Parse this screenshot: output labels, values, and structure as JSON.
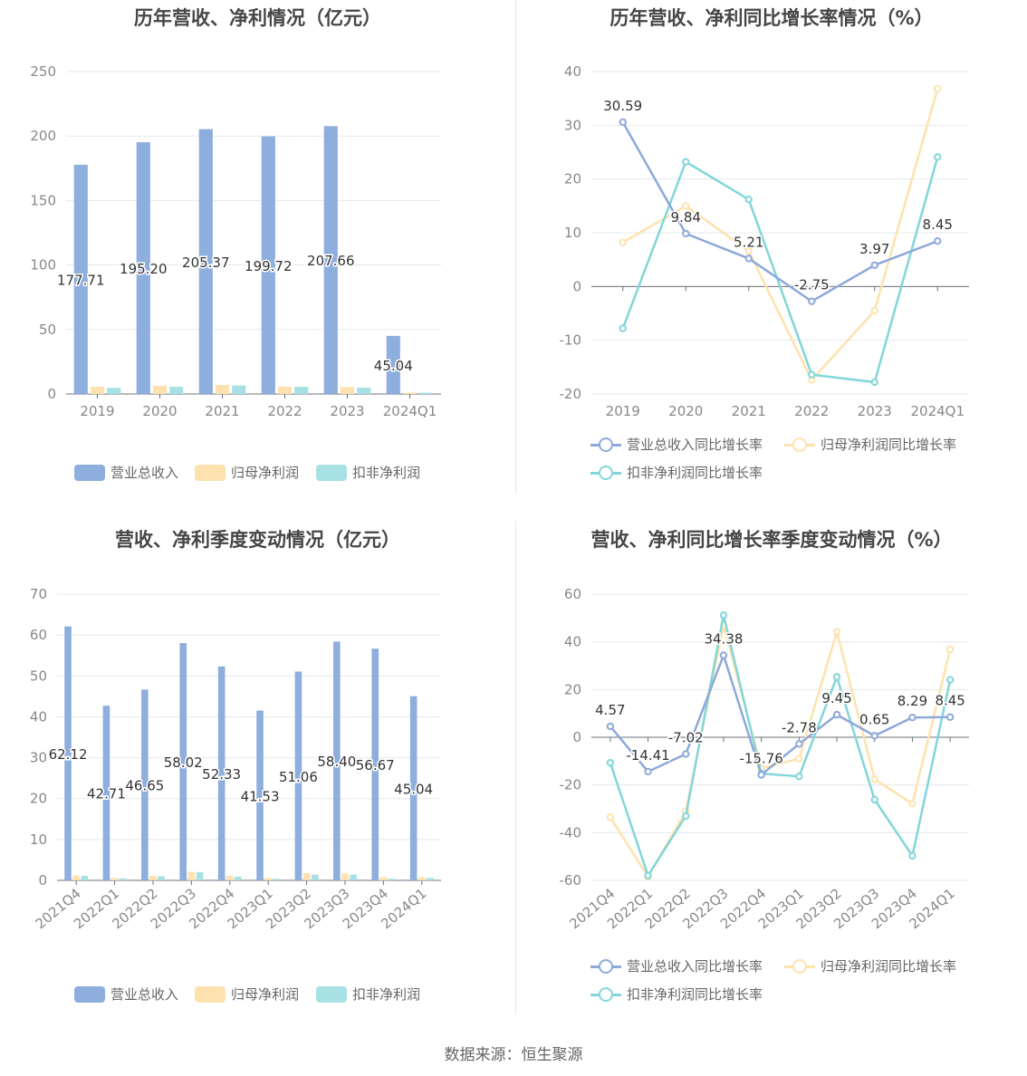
{
  "colors": {
    "revenue": "#8eaedd",
    "net_profit": "#fde2b0",
    "deducted_profit": "#a7e1e4",
    "revenue_line": "#8ea9d9",
    "net_line": "#fde3ad",
    "deducted_line": "#82d6d9",
    "grid": "#e6e8ee",
    "axis": "#6e7079",
    "tick_text": "#888888",
    "label_text": "#333333"
  },
  "legend": {
    "bar": [
      "营业总收入",
      "归母净利润",
      "扣非净利润"
    ],
    "line": [
      "营业总收入同比增长率",
      "归母净利润同比增长率",
      "扣非净利润同比增长率"
    ]
  },
  "footer": "数据来源：恒生聚源",
  "chart_data": [
    {
      "id": "annual-bar",
      "type": "bar",
      "title": "历年营收、净利情况（亿元）",
      "categories": [
        "2019",
        "2020",
        "2021",
        "2022",
        "2023",
        "2024Q1"
      ],
      "ylim": [
        0,
        250
      ],
      "yticks": [
        0,
        50,
        100,
        150,
        200,
        250
      ],
      "series": [
        {
          "name": "营业总收入",
          "values": [
            177.71,
            195.2,
            205.37,
            199.72,
            207.66,
            45.04
          ],
          "labels": [
            "177.71",
            "195.20",
            "205.37",
            "199.72",
            "207.66",
            "45.04"
          ]
        },
        {
          "name": "归母净利润",
          "values": [
            5.6,
            6.4,
            7.0,
            5.8,
            5.5,
            1.1
          ]
        },
        {
          "name": "扣非净利润",
          "values": [
            4.8,
            5.6,
            6.6,
            5.6,
            4.9,
            1.0
          ]
        }
      ],
      "grid": true,
      "legend_position": "bottom"
    },
    {
      "id": "annual-line",
      "type": "line",
      "title": "历年营收、净利同比增长率情况（%）",
      "categories": [
        "2019",
        "2020",
        "2021",
        "2022",
        "2023",
        "2024Q1"
      ],
      "ylim": [
        -20,
        40
      ],
      "yticks": [
        -20,
        -10,
        0,
        10,
        20,
        30,
        40
      ],
      "series": [
        {
          "name": "营业总收入同比增长率",
          "values": [
            30.59,
            9.84,
            5.21,
            -2.75,
            3.97,
            8.45
          ],
          "labels": [
            "30.59",
            "9.84",
            "5.21",
            "-2.75",
            "3.97",
            "8.45"
          ]
        },
        {
          "name": "归母净利润同比增长率",
          "values": [
            8.2,
            15.0,
            6.6,
            -17.4,
            -4.5,
            36.8
          ]
        },
        {
          "name": "扣非净利润同比增长率",
          "values": [
            -7.8,
            23.2,
            16.2,
            -16.4,
            -17.8,
            24.1
          ]
        }
      ],
      "grid": true,
      "legend_position": "bottom"
    },
    {
      "id": "quarter-bar",
      "type": "bar",
      "title": "营收、净利季度变动情况（亿元）",
      "categories": [
        "2021Q4",
        "2022Q1",
        "2022Q2",
        "2022Q3",
        "2022Q4",
        "2023Q1",
        "2023Q2",
        "2023Q3",
        "2023Q4",
        "2024Q1"
      ],
      "ylim": [
        0,
        70
      ],
      "yticks": [
        0,
        10,
        20,
        30,
        40,
        50,
        60,
        70
      ],
      "series": [
        {
          "name": "营业总收入",
          "values": [
            62.12,
            42.71,
            46.65,
            58.02,
            52.33,
            41.53,
            51.06,
            58.4,
            56.67,
            45.04
          ],
          "labels": [
            "62.12",
            "42.71",
            "46.65",
            "58.02",
            "52.33",
            "41.53",
            "51.06",
            "58.40",
            "56.67",
            "45.04"
          ]
        },
        {
          "name": "归母净利润",
          "values": [
            1.2,
            0.6,
            1.1,
            2.1,
            1.1,
            0.6,
            1.8,
            1.7,
            0.8,
            0.8
          ]
        },
        {
          "name": "扣非净利润",
          "values": [
            1.1,
            0.5,
            1.0,
            2.0,
            0.9,
            0.4,
            1.4,
            1.4,
            0.4,
            0.6
          ]
        }
      ],
      "grid": true,
      "legend_position": "bottom"
    },
    {
      "id": "quarter-line",
      "type": "line",
      "title": "营收、净利同比增长率季度变动情况（%）",
      "categories": [
        "2021Q4",
        "2022Q1",
        "2022Q2",
        "2022Q3",
        "2022Q4",
        "2023Q1",
        "2023Q2",
        "2023Q3",
        "2023Q4",
        "2024Q1"
      ],
      "ylim": [
        -60,
        60
      ],
      "yticks": [
        -60,
        -40,
        -20,
        0,
        20,
        40,
        60
      ],
      "series": [
        {
          "name": "营业总收入同比增长率",
          "values": [
            4.57,
            -14.41,
            -7.02,
            34.38,
            -15.76,
            -2.78,
            9.45,
            0.65,
            8.29,
            8.45
          ],
          "labels": [
            "4.57",
            "-14.41",
            "-7.02",
            "34.38",
            "-15.76",
            "-2.78",
            "9.45",
            "0.65",
            "8.29",
            "8.45"
          ]
        },
        {
          "name": "归母净利润同比增长率",
          "values": [
            -33.5,
            -58.5,
            -31.0,
            47.0,
            -13.0,
            -9.0,
            44.2,
            -17.6,
            -27.8,
            36.8
          ]
        },
        {
          "name": "扣非净利润同比增长率",
          "values": [
            -10.7,
            -58.0,
            -33.0,
            51.2,
            -15.2,
            -16.4,
            25.3,
            -26.2,
            -49.7,
            24.1
          ]
        }
      ],
      "grid": true,
      "legend_position": "bottom"
    }
  ]
}
